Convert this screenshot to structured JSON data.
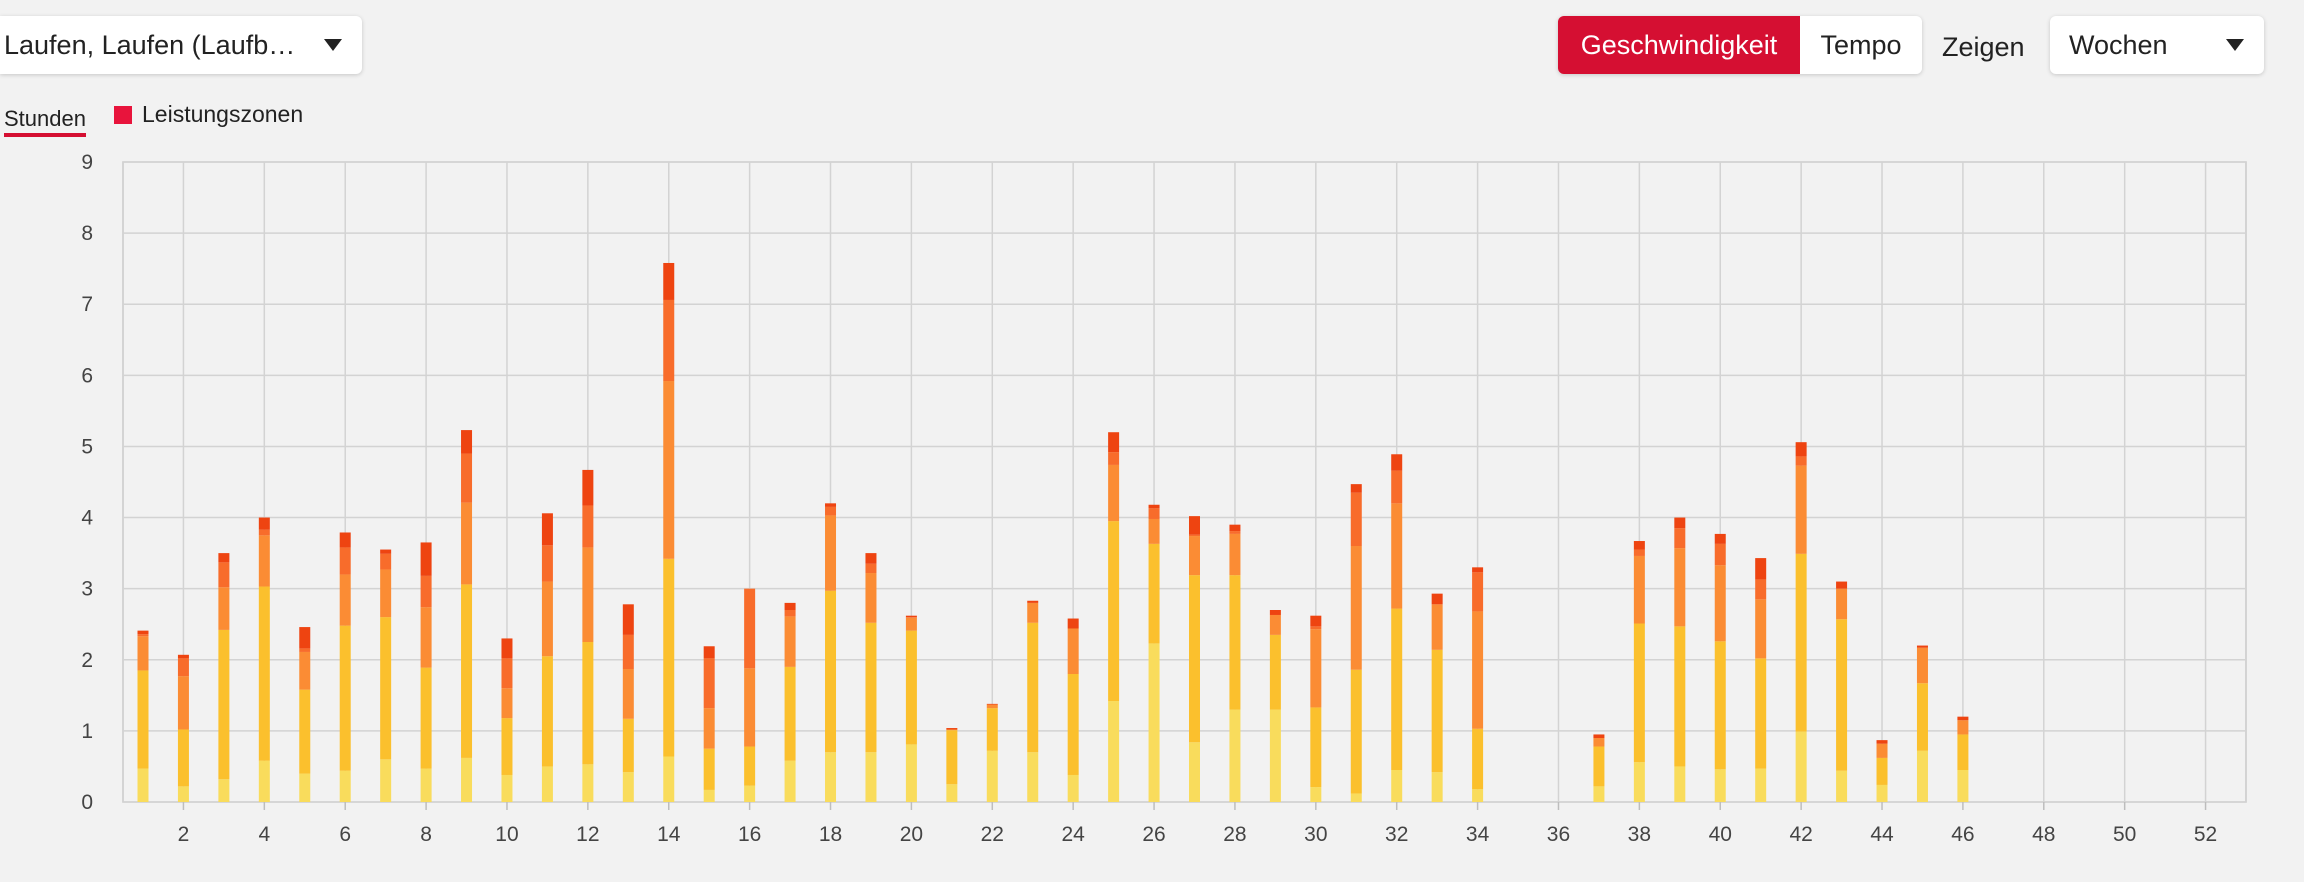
{
  "sport_select": {
    "label": "Laufen, Laufen (Laufb…"
  },
  "unit_toggle": {
    "speed": "Geschwindigkeit",
    "pace": "Tempo"
  },
  "show_label": "Zeigen",
  "period_select": {
    "label": "Wochen"
  },
  "tabs": {
    "hours": "Stunden"
  },
  "legend": {
    "zones": "Leistungszonen"
  },
  "colors": {
    "accent": "#d50f32",
    "zone1": "#f9dc5c",
    "zone2": "#fbc02d",
    "zone3": "#fb8c34",
    "zone4": "#f86c2b",
    "zone5": "#ee4411"
  },
  "chart_data": {
    "type": "bar",
    "stacked": true,
    "x": [
      1,
      2,
      3,
      4,
      5,
      6,
      7,
      8,
      9,
      10,
      11,
      12,
      13,
      14,
      15,
      16,
      17,
      18,
      19,
      20,
      21,
      22,
      23,
      24,
      25,
      26,
      27,
      28,
      29,
      30,
      31,
      32,
      33,
      34,
      35,
      36,
      37,
      38,
      39,
      40,
      41,
      42,
      43,
      44,
      45,
      46,
      47,
      48,
      49,
      50,
      51,
      52,
      53
    ],
    "x_tick_labels": [
      "2",
      "4",
      "6",
      "8",
      "10",
      "12",
      "14",
      "16",
      "18",
      "20",
      "22",
      "24",
      "26",
      "28",
      "30",
      "32",
      "34",
      "36",
      "38",
      "40",
      "42",
      "44",
      "46",
      "48",
      "50",
      "52"
    ],
    "ylim": [
      0,
      9
    ],
    "y_ticks": [
      0,
      1,
      2,
      3,
      4,
      5,
      6,
      7,
      8,
      9
    ],
    "grid": true,
    "series": [
      {
        "values": [
          0.47,
          0.22,
          0.32,
          0.58,
          0.4,
          0.44,
          0.6,
          0.47,
          0.62,
          0.38,
          0.5,
          0.53,
          0.42,
          0.64,
          0.17,
          0.23,
          0.58,
          0.7,
          0.7,
          0.81,
          0.25,
          0.72,
          0.7,
          0.38,
          1.42,
          2.23,
          0.84,
          1.3,
          1.3,
          0.21,
          0.12,
          0.45,
          0.42,
          0.18,
          0,
          0,
          0.22,
          0.56,
          0.5,
          0.46,
          0.47,
          0.99,
          0.44,
          0.24,
          0.72,
          0.45,
          0,
          0,
          0,
          0,
          0,
          0,
          0
        ]
      },
      {
        "values": [
          1.38,
          0.8,
          2.1,
          2.45,
          1.18,
          2.04,
          2.0,
          1.42,
          2.44,
          0.8,
          1.55,
          1.72,
          0.75,
          2.78,
          0.58,
          0.55,
          1.32,
          2.27,
          1.82,
          1.6,
          0.76,
          0.6,
          1.82,
          1.42,
          2.53,
          1.4,
          2.35,
          1.89,
          1.05,
          1.12,
          1.74,
          2.27,
          1.72,
          0.85,
          0,
          0,
          0.56,
          1.95,
          1.97,
          1.8,
          1.55,
          2.5,
          2.13,
          0.38,
          0.95,
          0.5,
          0,
          0,
          0,
          0,
          0,
          0,
          0
        ]
      },
      {
        "values": [
          0.48,
          0.75,
          0.6,
          0.72,
          0.53,
          0.72,
          0.67,
          0.85,
          1.15,
          0.42,
          1.05,
          1.33,
          0.7,
          2.5,
          0.57,
          1.1,
          0.71,
          1.06,
          0.7,
          0.18,
          0.01,
          0.05,
          0.28,
          0.64,
          0.79,
          0.35,
          0.55,
          0.58,
          0.28,
          1.1,
          1.74,
          1.48,
          0.64,
          1.65,
          0,
          0,
          0.12,
          0.95,
          1.1,
          1.07,
          0.83,
          1.24,
          0.43,
          0.2,
          0.5,
          0.2,
          0,
          0,
          0,
          0,
          0,
          0,
          0
        ]
      },
      {
        "values": [
          0.03,
          0.25,
          0.35,
          0.08,
          0.05,
          0.38,
          0.22,
          0.44,
          0.69,
          0.42,
          0.51,
          0.59,
          0.48,
          1.14,
          0.7,
          1.12,
          0.09,
          0.12,
          0.13,
          0.01,
          0,
          0,
          0,
          0,
          0.18,
          0.15,
          0.02,
          0.04,
          0,
          0.04,
          0.75,
          0.46,
          0,
          0.55,
          0,
          0,
          0,
          0.09,
          0.28,
          0.3,
          0.28,
          0.13,
          0,
          0,
          0,
          0,
          0,
          0,
          0,
          0,
          0,
          0,
          0
        ]
      },
      {
        "values": [
          0.05,
          0.05,
          0.13,
          0.17,
          0.3,
          0.21,
          0.06,
          0.47,
          0.33,
          0.28,
          0.45,
          0.5,
          0.43,
          0.52,
          0.17,
          0,
          0.1,
          0.05,
          0.15,
          0.02,
          0.02,
          0.01,
          0.03,
          0.14,
          0.28,
          0.05,
          0.26,
          0.09,
          0.07,
          0.15,
          0.12,
          0.23,
          0.15,
          0.07,
          0,
          0,
          0.05,
          0.12,
          0.15,
          0.14,
          0.3,
          0.2,
          0.1,
          0.05,
          0.03,
          0.05,
          0,
          0,
          0,
          0,
          0,
          0,
          0
        ]
      }
    ]
  }
}
